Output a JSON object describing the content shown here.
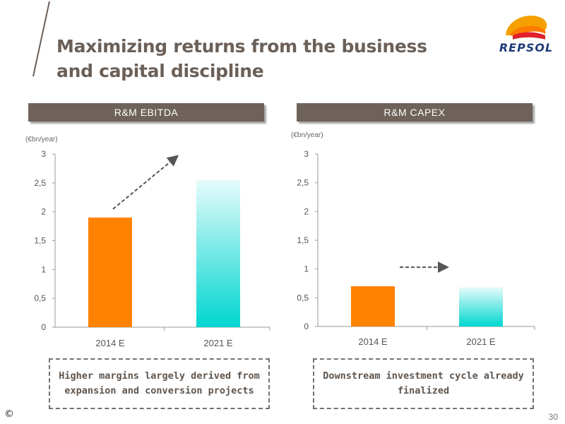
{
  "title": "Maximizing returns from the business and capital discipline",
  "logo_text": "REPSOL",
  "colors": {
    "bar_2014": "#ff8200",
    "bar_2021_top": "#e6fbfb",
    "bar_2021_bottom": "#00d6d0",
    "header_bg": "#6e625a",
    "axis": "#999999",
    "arrow": "#555555"
  },
  "chart_data": [
    {
      "type": "bar",
      "title": "R&M EBITDA",
      "unit_label": "(€bn/year)",
      "categories": [
        "2014 E",
        "2021 E"
      ],
      "values": [
        1.9,
        2.55
      ],
      "ylim": [
        0,
        3
      ],
      "yticks": [
        "0",
        "0,5",
        "1",
        "1,5",
        "2",
        "2,5",
        "3"
      ],
      "annotation": "dashed arrow rising from 2014 E bar toward 2021 E"
    },
    {
      "type": "bar",
      "title": "R&M CAPEX",
      "unit_label": "(€bn/year)",
      "categories": [
        "2014 E",
        "2021 E"
      ],
      "values": [
        0.7,
        0.68
      ],
      "ylim": [
        0,
        3
      ],
      "yticks": [
        "0",
        "0,5",
        "1",
        "1,5",
        "2",
        "2,5",
        "3"
      ],
      "annotation": "dashed horizontal arrow from 2014 E toward 2021 E"
    }
  ],
  "notes": [
    "Higher margins largely derived from expansion and conversion projects",
    "Downstream investment cycle already finalized"
  ],
  "copyright": "©",
  "page_number": "30"
}
